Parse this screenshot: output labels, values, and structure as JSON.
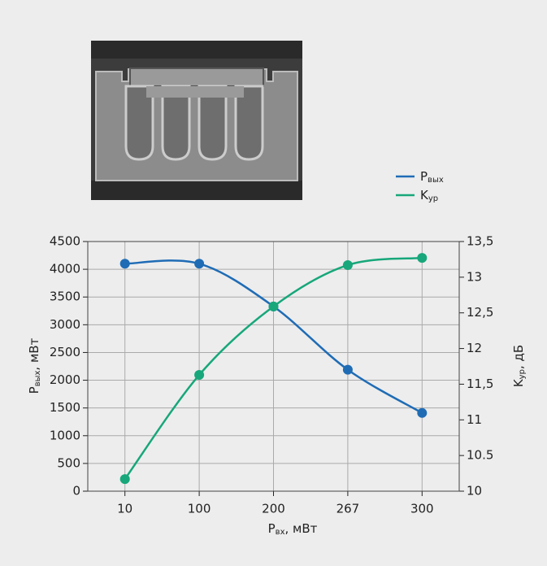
{
  "chart_data": {
    "type": "line",
    "categories": [
      "10",
      "100",
      "200",
      "267",
      "300"
    ],
    "x_label": {
      "symbol": "P",
      "subscript": "вх",
      "unit": ", мВт"
    },
    "y_label": {
      "symbol": "P",
      "subscript": "вых",
      "unit": ", мВт"
    },
    "y2_label": {
      "symbol": "K",
      "subscript": "ур",
      "unit": ", дБ"
    },
    "ylim": [
      0,
      4500
    ],
    "yticks": [
      0,
      500,
      1000,
      1500,
      2000,
      2500,
      3000,
      3500,
      4000,
      4500
    ],
    "y2lim": [
      10,
      13.5
    ],
    "y2ticks": [
      10,
      10.5,
      11,
      {
        "value": 11.5,
        "label": "11,5"
      },
      12,
      {
        "value": 12.5,
        "label": "12,5"
      },
      13,
      {
        "value": 13.5,
        "label": "13,5"
      }
    ],
    "grid": true,
    "smooth": true,
    "series": [
      {
        "name": {
          "symbol": "P",
          "subscript": "вых"
        },
        "color": "#1f6cb5",
        "values": [
          4100,
          4100,
          3330,
          2190,
          1410
        ]
      },
      {
        "name": {
          "symbol": "K",
          "subscript": "ур"
        },
        "color": "#17a77a",
        "axis": "y2",
        "values": [
          10.17,
          11.63,
          12.59,
          13.17,
          13.27
        ]
      }
    ]
  }
}
